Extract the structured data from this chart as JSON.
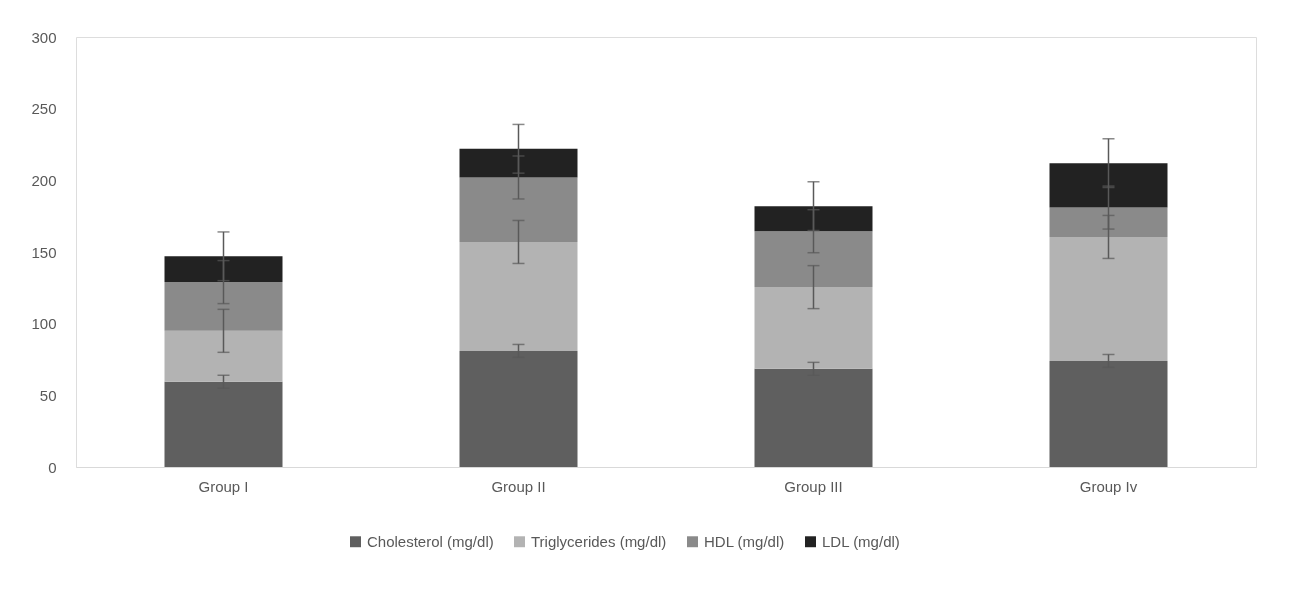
{
  "chart_data": {
    "type": "bar",
    "stacked": true,
    "categories": [
      "Group I",
      "Group II",
      "Group III",
      "Group Iv"
    ],
    "series": [
      {
        "name": "Cholesterol (mg/dl)",
        "color": "#5f5f5f",
        "values": [
          59.5,
          81,
          68.5,
          74
        ],
        "errors": [
          4.5,
          4.5,
          4.5,
          4.5
        ]
      },
      {
        "name": "Triglycerides (mg/dl)",
        "color": "#b3b3b3",
        "values": [
          35.5,
          76,
          57,
          86.5
        ],
        "errors": [
          15,
          15,
          15,
          15
        ]
      },
      {
        "name": "HDL (mg/dl)",
        "color": "#8a8a8a",
        "values": [
          34,
          45,
          39,
          20.5
        ],
        "errors": [
          15,
          15,
          15,
          15
        ]
      },
      {
        "name": "LDL (mg/dl)",
        "color": "#222222",
        "values": [
          18,
          20,
          17.5,
          31
        ],
        "errors": [
          17,
          17,
          17,
          17
        ]
      }
    ],
    "ylim": [
      0,
      300
    ],
    "yticks": [
      0,
      50,
      100,
      150,
      200,
      250,
      300
    ],
    "grid": false,
    "legend": "bottom"
  }
}
